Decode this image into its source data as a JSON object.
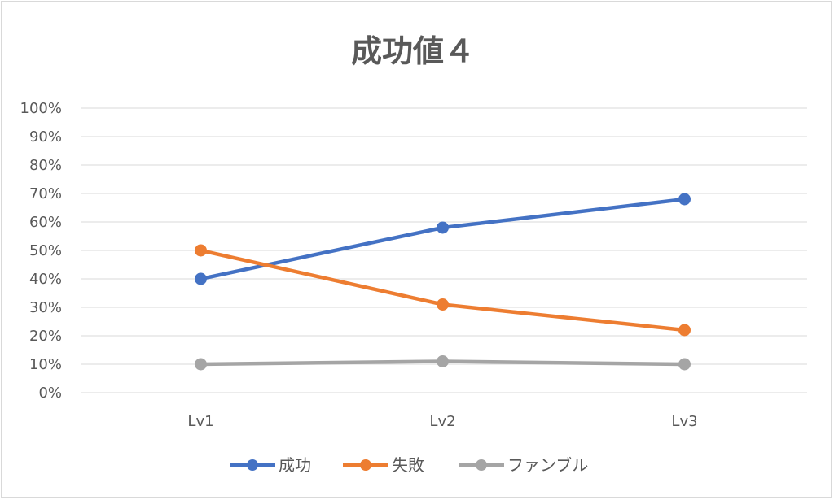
{
  "chart_data": {
    "type": "line",
    "title": "成功値４",
    "xlabel": "",
    "ylabel": "",
    "categories": [
      "Lv1",
      "Lv2",
      "Lv3"
    ],
    "ylim": [
      0,
      100
    ],
    "yticks": [
      "0%",
      "10%",
      "20%",
      "30%",
      "40%",
      "50%",
      "60%",
      "70%",
      "80%",
      "90%",
      "100%"
    ],
    "grid": true,
    "legend_position": "bottom",
    "series": [
      {
        "name": "成功",
        "color": "#4472C4",
        "values": [
          40,
          58,
          68
        ]
      },
      {
        "name": "失敗",
        "color": "#ED7D31",
        "values": [
          50,
          31,
          22
        ]
      },
      {
        "name": "ファンブル",
        "color": "#A5A5A5",
        "values": [
          10,
          11,
          10
        ]
      }
    ]
  }
}
